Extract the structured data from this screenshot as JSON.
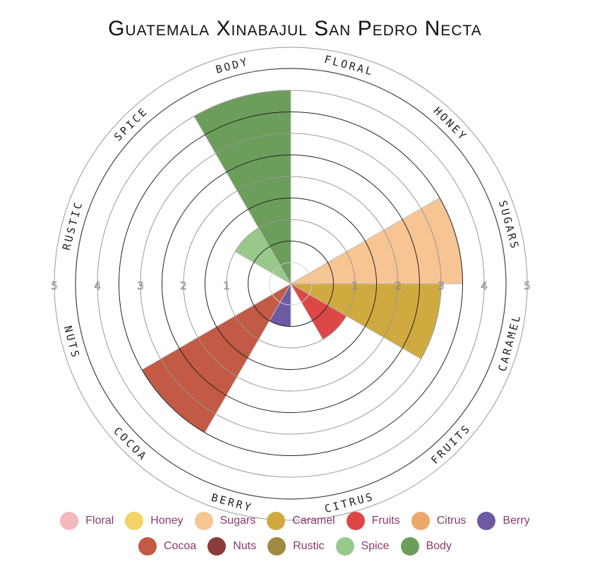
{
  "chart_data": {
    "type": "radial-bar",
    "title": "Guatemala Xinabajul San Pedro Necta",
    "scale_max": 5,
    "radial_ticks": [
      1,
      2,
      3,
      4,
      5
    ],
    "categories": [
      "Floral",
      "Honey",
      "Sugars",
      "Caramel",
      "Fruits",
      "Citrus",
      "Berry",
      "Cocoa",
      "Nuts",
      "Rustic",
      "Spice",
      "Body"
    ],
    "values": [
      0,
      0,
      3.5,
      3.0,
      1.0,
      0,
      0.5,
      3.5,
      0,
      0,
      1.0,
      4.0
    ],
    "colors": {
      "Floral": "#f4b8bd",
      "Honey": "#f3d266",
      "Sugars": "#f7c594",
      "Caramel": "#cfaa3f",
      "Fruits": "#dd4747",
      "Citrus": "#eaa86b",
      "Berry": "#6e59a3",
      "Cocoa": "#c25a45",
      "Nuts": "#8b3d3b",
      "Rustic": "#a08942",
      "Spice": "#99c98a",
      "Body": "#6b9e5a"
    },
    "legend_position": "bottom",
    "legend_rows": [
      [
        "Floral",
        "Honey",
        "Sugars",
        "Caramel",
        "Fruits",
        "Citrus",
        "Berry"
      ],
      [
        "Cocoa",
        "Nuts",
        "Rustic",
        "Spice",
        "Body"
      ]
    ]
  }
}
